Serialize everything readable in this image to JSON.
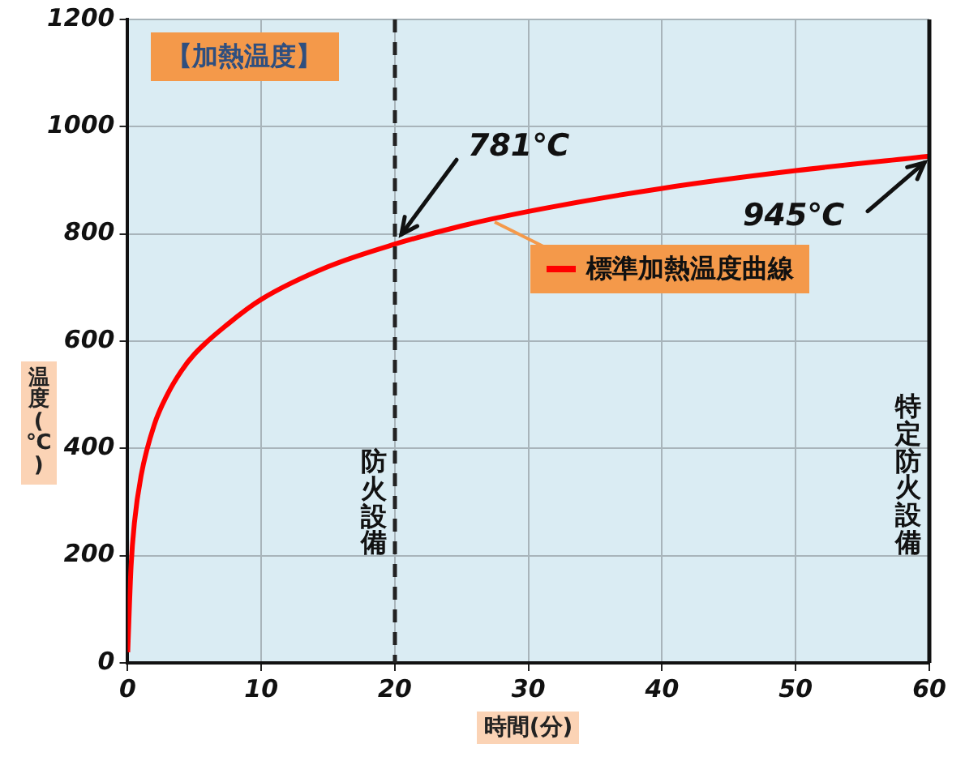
{
  "chart_data": {
    "type": "line",
    "title": "【加熱温度】",
    "xlabel": "時間(分)",
    "ylabel": "温度(℃)",
    "x": [
      0,
      0.25,
      0.5,
      1,
      2,
      3,
      4,
      5,
      7.5,
      10,
      15,
      20,
      25,
      30,
      40,
      50,
      60
    ],
    "series": [
      {
        "name": "標準加熱温度曲線",
        "color": "#ff0000",
        "values": [
          20,
          180,
          261,
          349,
          445,
          502,
          544,
          576,
          632,
          678,
          739,
          781,
          815,
          842,
          885,
          918,
          945
        ]
      }
    ],
    "xlim": [
      0,
      60
    ],
    "xticks": [
      0,
      10,
      20,
      30,
      40,
      50,
      60
    ],
    "ylim": [
      0,
      1200
    ],
    "yticks": [
      0,
      200,
      400,
      600,
      800,
      1000,
      1200
    ],
    "grid": true,
    "ref_lines": [
      {
        "axis": "x",
        "value": 20,
        "label": "防火設備",
        "color": "#222222",
        "line_style": "dashed"
      },
      {
        "axis": "x",
        "value": 60,
        "label": "特定防火設備",
        "color": "#111111",
        "line_style": "solid"
      }
    ],
    "annotations": [
      {
        "text": "781℃",
        "x": 20,
        "y": 781
      },
      {
        "text": "945℃",
        "x": 60,
        "y": 945
      }
    ]
  }
}
